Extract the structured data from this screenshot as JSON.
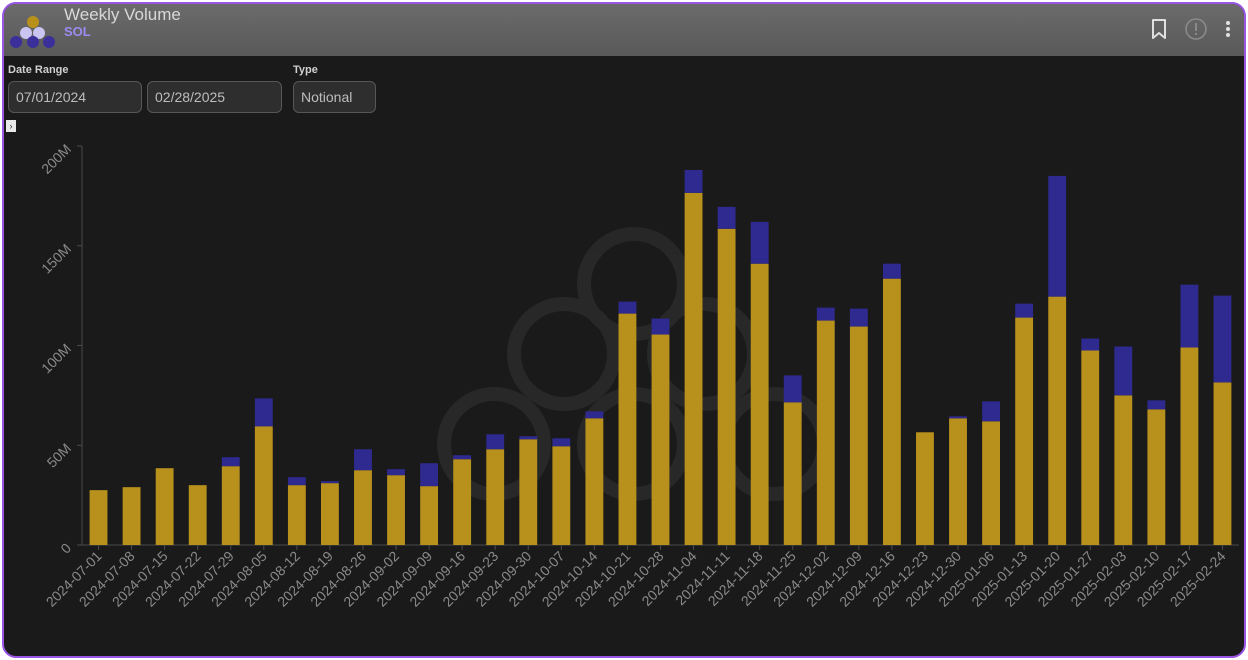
{
  "header": {
    "title": "Weekly Volume",
    "subtitle": "SOL",
    "icons": [
      "logo-icon",
      "bookmark-icon",
      "info-icon",
      "more-vertical-icon"
    ]
  },
  "controls": {
    "date_range_label": "Date Range",
    "start_date": "07/01/2024",
    "end_date": "02/28/2025",
    "type_label": "Type",
    "type_value": "Notional"
  },
  "colors": {
    "frame_border": "#9b55e6",
    "background": "#1a1a1a",
    "series_gold": "#b8901c",
    "series_blue": "#2e2a8f",
    "axis_text": "#8a8a8a"
  },
  "chart_data": {
    "type": "bar",
    "stacked": true,
    "categories": [
      "2024-07-01",
      "2024-07-08",
      "2024-07-15",
      "2024-07-22",
      "2024-07-29",
      "2024-08-05",
      "2024-08-12",
      "2024-08-19",
      "2024-08-26",
      "2024-09-02",
      "2024-09-09",
      "2024-09-16",
      "2024-09-23",
      "2024-09-30",
      "2024-10-07",
      "2024-10-14",
      "2024-10-21",
      "2024-10-28",
      "2024-11-04",
      "2024-11-11",
      "2024-11-18",
      "2024-11-25",
      "2024-12-02",
      "2024-12-09",
      "2024-12-16",
      "2024-12-23",
      "2024-12-30",
      "2025-01-06",
      "2025-01-13",
      "2025-01-20",
      "2025-01-27",
      "2025-02-03",
      "2025-02-10",
      "2025-02-17",
      "2025-02-24"
    ],
    "series": [
      {
        "color": "#b8901c",
        "values": [
          27.5,
          29,
          38.5,
          30,
          39.5,
          59.5,
          30,
          31,
          37.5,
          35,
          29.5,
          43,
          48,
          53,
          49.5,
          63.5,
          116,
          105.5,
          176.5,
          158.5,
          141,
          71.5,
          112.5,
          109.5,
          133.5,
          56.5,
          63.5,
          62,
          114,
          124.5,
          97.5,
          75,
          68,
          99,
          81.5
        ]
      },
      {
        "color": "#2e2a8f",
        "values": [
          0,
          0,
          0,
          0,
          4.5,
          14,
          4,
          1,
          10.5,
          3,
          11.5,
          2,
          7.5,
          1.5,
          4,
          3.5,
          6,
          8,
          11.5,
          11,
          21,
          13.5,
          6.5,
          9,
          7.5,
          0,
          1,
          10,
          7,
          60.5,
          6,
          24.5,
          4.5,
          31.5,
          43.5
        ]
      }
    ],
    "ylim": [
      0,
      200
    ],
    "yticks": [
      "0",
      "50M",
      "100M",
      "150M",
      "200M"
    ],
    "ytick_values": [
      0,
      50,
      100,
      150,
      200
    ],
    "grid": false
  }
}
